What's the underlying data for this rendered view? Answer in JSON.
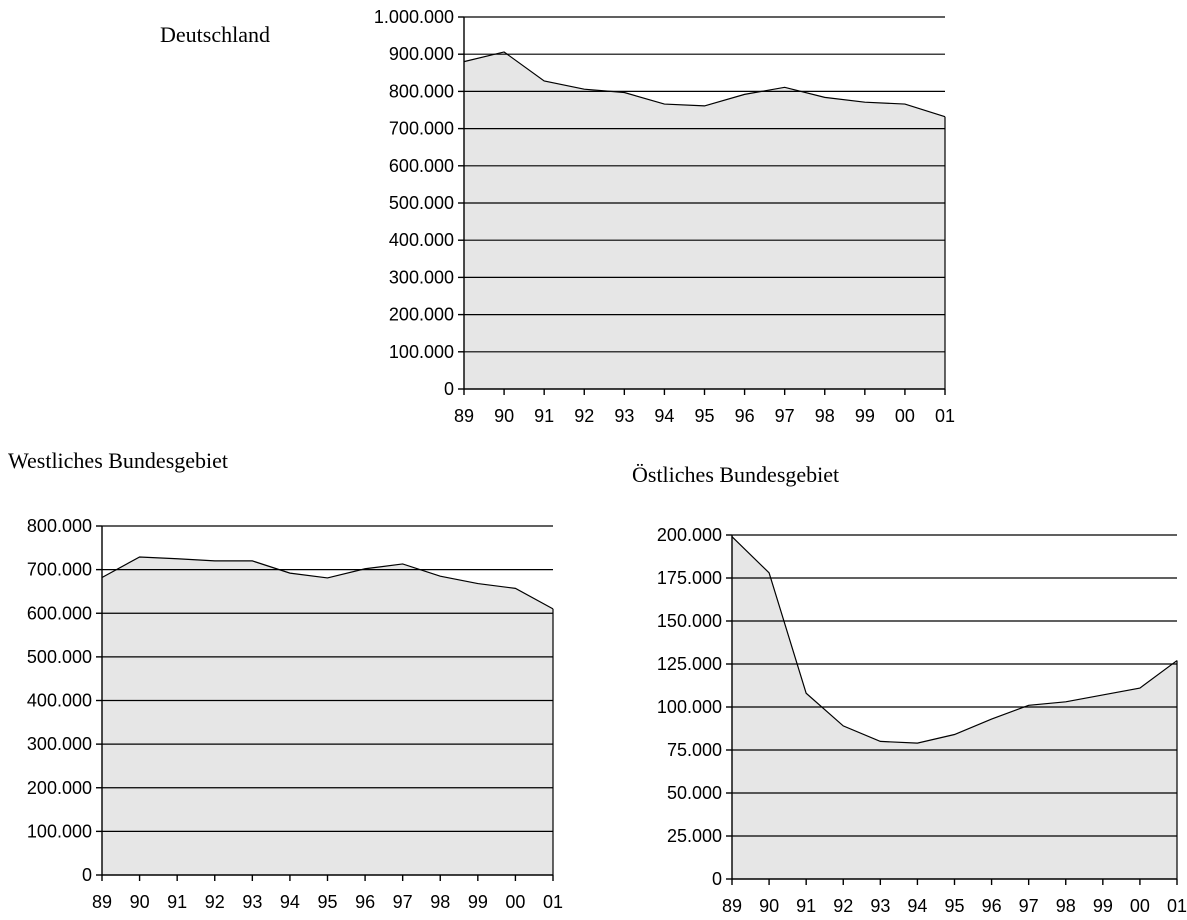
{
  "chart_data": [
    {
      "type": "area",
      "title": "Deutschland",
      "categories": [
        "89",
        "90",
        "91",
        "92",
        "93",
        "94",
        "95",
        "96",
        "97",
        "98",
        "99",
        "00",
        "01"
      ],
      "series": [
        {
          "values": [
            880000,
            906000,
            828000,
            806000,
            797000,
            766000,
            761000,
            792000,
            811000,
            784000,
            771000,
            766000,
            732000
          ]
        }
      ],
      "ylim": [
        0,
        1000000
      ],
      "yticks": [
        0,
        100000,
        200000,
        300000,
        400000,
        500000,
        600000,
        700000,
        800000,
        900000,
        1000000
      ],
      "ytick_labels": [
        "0",
        "100.000",
        "200.000",
        "300.000",
        "400.000",
        "500.000",
        "600.000",
        "700.000",
        "800.000",
        "900.000",
        "1.000.000"
      ],
      "grid": "horizontal",
      "colors": {
        "fill": "#e6e6e6",
        "line": "#000000"
      }
    },
    {
      "type": "area",
      "title": "Westliches Bundesgebiet",
      "categories": [
        "89",
        "90",
        "91",
        "92",
        "93",
        "94",
        "95",
        "96",
        "97",
        "98",
        "99",
        "00",
        "01"
      ],
      "series": [
        {
          "values": [
            682000,
            729000,
            725000,
            720000,
            720000,
            692000,
            681000,
            702000,
            713000,
            685000,
            668000,
            657000,
            610000
          ]
        }
      ],
      "ylim": [
        0,
        800000
      ],
      "yticks": [
        0,
        100000,
        200000,
        300000,
        400000,
        500000,
        600000,
        700000,
        800000
      ],
      "ytick_labels": [
        "0",
        "100.000",
        "200.000",
        "300.000",
        "400.000",
        "500.000",
        "600.000",
        "700.000",
        "800.000"
      ],
      "grid": "horizontal",
      "colors": {
        "fill": "#e6e6e6",
        "line": "#000000"
      }
    },
    {
      "type": "area",
      "title": "Östliches Bundesgebiet",
      "categories": [
        "89",
        "90",
        "91",
        "92",
        "93",
        "94",
        "95",
        "96",
        "97",
        "98",
        "99",
        "00",
        "01"
      ],
      "series": [
        {
          "values": [
            199000,
            178000,
            108000,
            89000,
            80000,
            79000,
            84000,
            93000,
            101000,
            103000,
            107000,
            111000,
            127000
          ]
        }
      ],
      "ylim": [
        0,
        200000
      ],
      "yticks": [
        0,
        25000,
        50000,
        75000,
        100000,
        125000,
        150000,
        175000,
        200000
      ],
      "ytick_labels": [
        "0",
        "25.000",
        "50.000",
        "75.000",
        "100.000",
        "125.000",
        "150.000",
        "175.000",
        "200.000"
      ],
      "grid": "horizontal",
      "colors": {
        "fill": "#e6e6e6",
        "line": "#000000"
      }
    }
  ]
}
